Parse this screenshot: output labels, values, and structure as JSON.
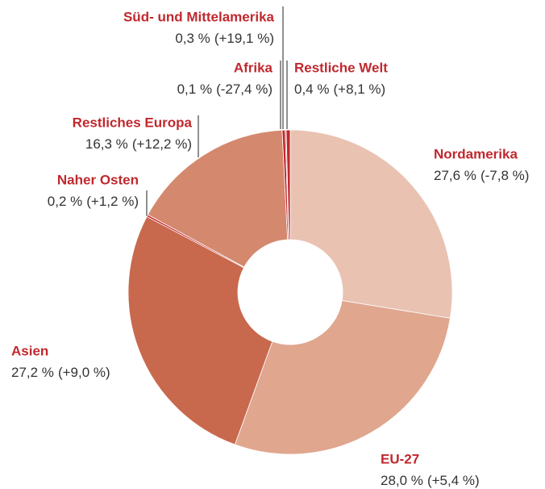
{
  "chart_data": {
    "type": "donut",
    "categories": [
      "Nordamerika",
      "EU-27",
      "Asien",
      "Naher Osten",
      "Restliches Europa",
      "Süd- und Mittelamerika",
      "Afrika",
      "Restliche Welt"
    ],
    "values": [
      27.6,
      28.0,
      27.2,
      0.2,
      16.3,
      0.3,
      0.1,
      0.4
    ],
    "value_labels": [
      "27,6 %",
      "28,0 %",
      "27,2 %",
      "0,2 %",
      "16,3 %",
      "0,3 %",
      "0,1 %",
      "0,4 %"
    ],
    "change_labels": [
      "(-7,8 %)",
      "(+5,4 %)",
      "(+9,0 %)",
      "(+1,2 %)",
      "(+12,2 %)",
      "(+19,1 %)",
      "(-27,4 %)",
      "(+8,1 %)"
    ],
    "colors": [
      "#e9c2b2",
      "#e0a68e",
      "#c8694e",
      "#c0282d",
      "#d4886e",
      "#c0282d",
      "#c0282d",
      "#c0282d"
    ]
  }
}
